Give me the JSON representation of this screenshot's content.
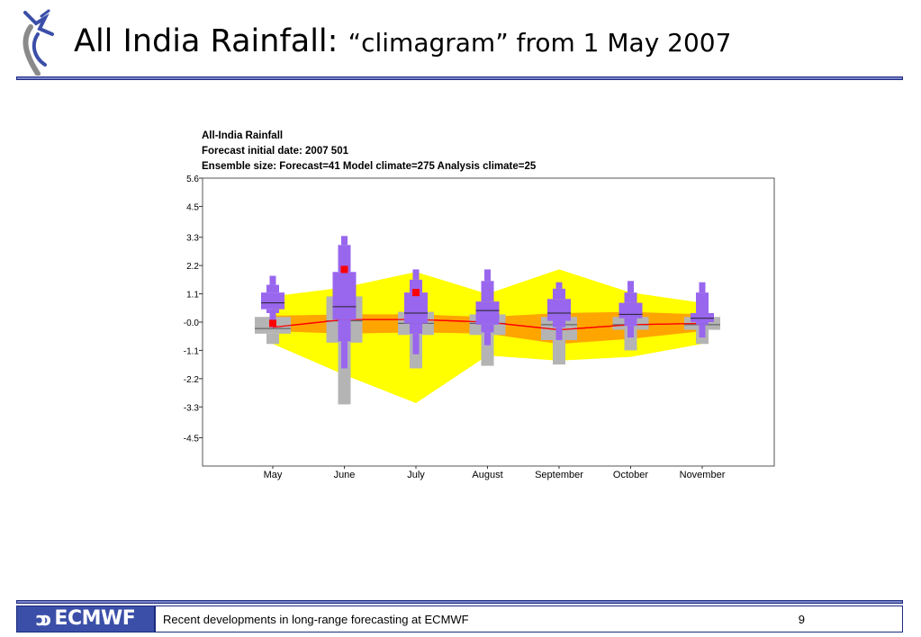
{
  "slide": {
    "title": "All India Rainfall:",
    "subtitle": "“climagram” from 1 May 2007"
  },
  "footer": {
    "logo_text": "ECMWF",
    "caption": "Recent developments in long-range forecasting at ECMWF",
    "page_number": "9"
  },
  "colors": {
    "rule": "#7a84c8",
    "forecast": "#9966ee",
    "model_climate": "#b4b4b4",
    "analysis_outer": "#ffff00",
    "analysis_inner": "#ffa500",
    "analysis_median": "#ff0000",
    "verification": "#ff0000"
  },
  "chart_data": {
    "type": "box",
    "title_lines": [
      "All-India Rainfall",
      " Forecast initial date: 2007 501",
      "Ensemble size: Forecast=41 Model climate=275 Analysis climate=25"
    ],
    "categories": [
      "May",
      "June",
      "July",
      "August",
      "September",
      "October",
      "November"
    ],
    "y_ticks": [
      "5.6",
      "4.5",
      "3.3",
      "2.2",
      "1.1",
      "-0.0",
      "-1.1",
      "-2.2",
      "-3.3",
      "-4.5"
    ],
    "ylim": [
      -5.6,
      5.6
    ],
    "analysis_climate": {
      "outer_upper": [
        1.0,
        1.35,
        1.95,
        1.1,
        2.05,
        1.15,
        0.75
      ],
      "outer_lower": [
        -0.85,
        -2.05,
        -3.15,
        -1.3,
        -1.5,
        -1.35,
        -0.85
      ],
      "inner_upper": [
        0.25,
        0.3,
        0.3,
        0.2,
        0.35,
        0.4,
        0.3
      ],
      "inner_lower": [
        -0.35,
        -0.45,
        -0.4,
        -0.45,
        -0.85,
        -0.65,
        -0.35
      ],
      "median": [
        -0.2,
        0.1,
        0.1,
        0.0,
        -0.3,
        -0.1,
        -0.05
      ]
    },
    "model_climate": [
      {
        "p5": -0.85,
        "p25": -0.45,
        "median": -0.25,
        "p75": 0.2,
        "p95": 0.15
      },
      {
        "p5": -3.2,
        "p25": -0.8,
        "median": 0.05,
        "p75": 1.0,
        "p95": 1.0
      },
      {
        "p5": -1.8,
        "p25": -0.5,
        "median": -0.05,
        "p75": 0.4,
        "p95": 0.4
      },
      {
        "p5": -1.7,
        "p25": -0.5,
        "median": -0.05,
        "p75": 0.3,
        "p95": 0.3
      },
      {
        "p5": -1.65,
        "p25": -0.7,
        "median": -0.1,
        "p75": 0.2,
        "p95": 0.2
      },
      {
        "p5": -1.1,
        "p25": -0.3,
        "median": -0.1,
        "p75": 0.2,
        "p95": 0.2
      },
      {
        "p5": -0.85,
        "p25": -0.3,
        "median": -0.1,
        "p75": 0.2,
        "p95": 0.2
      }
    ],
    "forecast": [
      {
        "p5": -0.2,
        "p10": 0.35,
        "p25": 0.5,
        "median": 0.75,
        "p75": 1.15,
        "p90": 1.45,
        "p95": 1.8
      },
      {
        "p5": -1.8,
        "p10": -0.75,
        "p25": 0.1,
        "median": 0.6,
        "p75": 1.95,
        "p90": 3.0,
        "p95": 3.35
      },
      {
        "p5": -1.25,
        "p10": -0.45,
        "p25": -0.05,
        "median": 0.35,
        "p75": 1.15,
        "p90": 1.65,
        "p95": 2.05
      },
      {
        "p5": -0.9,
        "p10": -0.4,
        "p25": -0.1,
        "median": 0.45,
        "p75": 0.8,
        "p90": 1.6,
        "p95": 2.05
      },
      {
        "p5": -0.7,
        "p10": -0.2,
        "p25": 0.05,
        "median": 0.35,
        "p75": 0.9,
        "p90": 1.3,
        "p95": 1.55
      },
      {
        "p5": -0.6,
        "p10": -0.15,
        "p25": 0.15,
        "median": 0.3,
        "p75": 0.75,
        "p90": 1.15,
        "p95": 1.6
      },
      {
        "p5": -0.6,
        "p10": -0.1,
        "p25": 0.0,
        "median": 0.15,
        "p75": 0.35,
        "p90": 1.15,
        "p95": 1.55
      }
    ],
    "verification": [
      {
        "month": "May",
        "value": -0.05
      },
      {
        "month": "June",
        "value": 2.05
      },
      {
        "month": "July",
        "value": 1.15
      }
    ],
    "grid": false
  }
}
